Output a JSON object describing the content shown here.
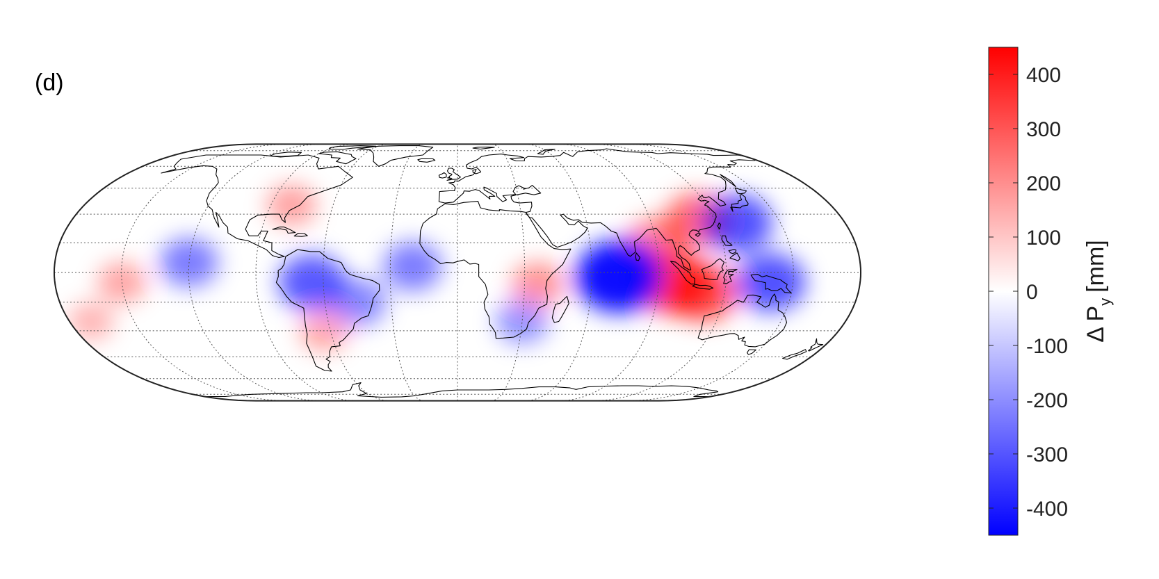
{
  "panel_label": "(d)",
  "map": {
    "projection": "Eckert IV",
    "graticule_lat_step_deg": 15,
    "graticule_lon_step_deg": 30,
    "features": [
      "coastlines",
      "graticule"
    ],
    "anomaly_centers": [
      {
        "name": "eastern-indian-ocean-west-sumatra",
        "lon": 96,
        "lat": -5,
        "value": 350
      },
      {
        "name": "indonesia-java",
        "lon": 110,
        "lat": -10,
        "value": 300
      },
      {
        "name": "south-china",
        "lon": 112,
        "lat": 27,
        "value": 250
      },
      {
        "name": "bay-of-bengal",
        "lon": 90,
        "lat": 15,
        "value": 200
      },
      {
        "name": "east-africa-tanzania",
        "lon": 36,
        "lat": -6,
        "value": 150
      },
      {
        "name": "southeast-us",
        "lon": -80,
        "lat": 35,
        "value": 120
      },
      {
        "name": "central-pacific",
        "lon": -150,
        "lat": -5,
        "value": 110
      },
      {
        "name": "south-pacific",
        "lon": -170,
        "lat": -25,
        "value": 80
      },
      {
        "name": "argentina",
        "lon": -63,
        "lat": -30,
        "value": 110
      },
      {
        "name": "west-indian-ocean",
        "lon": 72,
        "lat": -2,
        "value": -450
      },
      {
        "name": "philippine-sea",
        "lon": 130,
        "lat": 25,
        "value": -300
      },
      {
        "name": "northern-south-america",
        "lon": -65,
        "lat": -5,
        "value": -280
      },
      {
        "name": "maritime-continent-new-guinea",
        "lon": 140,
        "lat": -5,
        "value": -300
      },
      {
        "name": "east-pacific-itcz",
        "lon": -120,
        "lat": 5,
        "value": -200
      },
      {
        "name": "tropical-atlantic",
        "lon": -20,
        "lat": 3,
        "value": -200
      },
      {
        "name": "brazil",
        "lon": -45,
        "lat": -15,
        "value": -180
      },
      {
        "name": "southern-africa",
        "lon": 30,
        "lat": -25,
        "value": -150
      }
    ]
  },
  "colorbar": {
    "label": "Δ P",
    "label_subscript": "y",
    "label_unit": "[mm]",
    "min": -450,
    "max": 450,
    "ticks": [
      400,
      300,
      200,
      100,
      0,
      -100,
      -200,
      -300,
      -400
    ],
    "ticks_text": [
      "400",
      "300",
      "200",
      "100",
      "0",
      "-100",
      "-200",
      "-300",
      "-400"
    ],
    "colormap": {
      "low": "#0000ff",
      "mid": "#ffffff",
      "high": "#ff0000"
    }
  }
}
